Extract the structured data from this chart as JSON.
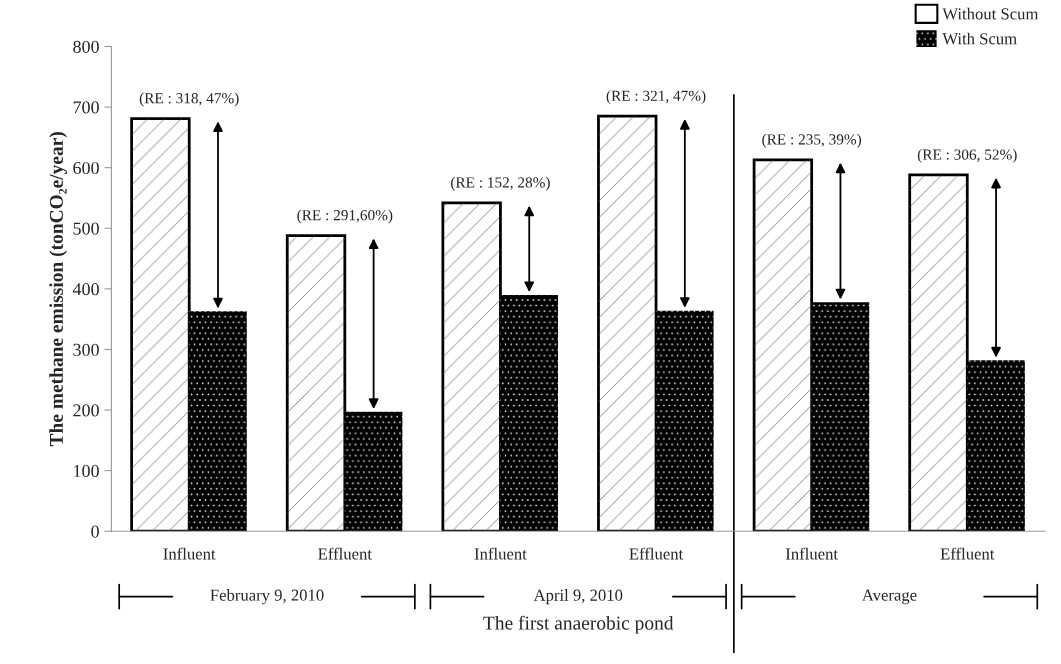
{
  "chart_data": {
    "type": "bar",
    "xlabel": "The first anaerobic pond",
    "ylabel": "The methane emission (tonCO₂e/year)",
    "categories": [
      "Influent",
      "Effluent",
      "Influent",
      "Effluent",
      "Influent",
      "Effluent"
    ],
    "series": [
      {
        "name": "Without Scum",
        "color": "#ffffff",
        "values": [
          681,
          488,
          542,
          685,
          613,
          588
        ]
      },
      {
        "name": "With Scum",
        "color": "#000000",
        "values": [
          363,
          197,
          390,
          364,
          378,
          282
        ]
      }
    ],
    "ylim": [
      0,
      800
    ],
    "yticks": [
      0,
      100,
      200,
      300,
      400,
      500,
      600,
      700,
      800
    ],
    "grid": false,
    "legend": "top right",
    "annotations": [
      "(RE : 318, 47%)",
      "(RE : 291,60%)",
      "(RE : 152, 28%)",
      "(RE : 321, 47%)",
      "(RE : 235, 39%)",
      "(RE : 306, 52%)",
      "February 9, 2010",
      "April 9, 2010",
      "Average"
    ]
  }
}
